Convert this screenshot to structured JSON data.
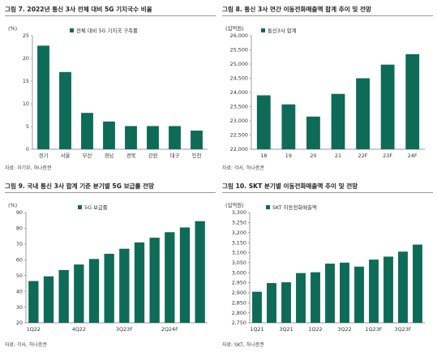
{
  "bar_color": "#0e6b57",
  "panels": [
    {
      "title": "그림 7. 2022년 통신 3사 전체 대비 5G 기지국수 비율",
      "source": "자료: 과기부, 하나증권"
    },
    {
      "title": "그림 8. 통신 3사 연간 이동전화매출액 합계 추이 및 전망",
      "source": "자료: 각사, 하나증권"
    },
    {
      "title": "그림 9. 국내 통신 3사 합계 기준 분기별 5G 보급률 전망",
      "source": "자료: 각사, 하나증권"
    },
    {
      "title": "그림 10. SKT 분기별 이동전화매출액 추이 및 전망",
      "source": "자료: SKT, 하나증권"
    }
  ],
  "chart_data": [
    {
      "type": "bar",
      "unit": "(%)",
      "series": [
        {
          "name": "전체 대비 5G 기지국 구축률",
          "values": [
            22.8,
            17.0,
            8.0,
            6.1,
            5.1,
            5.1,
            5.1,
            4.1
          ]
        }
      ],
      "categories": [
        "경기",
        "서울",
        "부산",
        "경남",
        "경북",
        "강원",
        "대구",
        "인천"
      ],
      "ylim": [
        0,
        25
      ],
      "yticks": [
        "0",
        "5",
        "10",
        "15",
        "20",
        "25"
      ],
      "legend": "top-center"
    },
    {
      "type": "bar",
      "unit": "(십억원)",
      "series": [
        {
          "name": "통신3사 합계",
          "values": [
            23900,
            23580,
            23150,
            23950,
            24500,
            24980,
            25350
          ]
        }
      ],
      "categories": [
        "18",
        "19",
        "20",
        "21",
        "22F",
        "23F",
        "24F"
      ],
      "ylim": [
        22000,
        26000
      ],
      "yticks": [
        "22,000",
        "22,500",
        "23,000",
        "23,500",
        "24,000",
        "24,500",
        "25,000",
        "25,500",
        "26,000"
      ],
      "legend": "top-left"
    },
    {
      "type": "bar",
      "unit": "(%)",
      "series": [
        {
          "name": "5G 보급률",
          "values": [
            46.5,
            49.5,
            53.5,
            57.0,
            60.5,
            63.8,
            67.0,
            71.0,
            74.0,
            77.5,
            80.5,
            84.5
          ]
        }
      ],
      "categories": [
        "1Q22",
        "2Q22",
        "3Q22",
        "4Q22",
        "1Q23F",
        "2Q23F",
        "3Q23F",
        "4Q23F",
        "1Q24F",
        "2Q24F",
        "3Q24F",
        "4Q24F"
      ],
      "category_labels_shown": [
        "1Q22",
        "4Q22",
        "3Q23F",
        "2Q24F"
      ],
      "ylim": [
        20,
        90
      ],
      "yticks": [
        "20",
        "30",
        "40",
        "50",
        "60",
        "70",
        "80",
        "90"
      ],
      "legend": "top-left"
    },
    {
      "type": "bar",
      "unit": "(십억원)",
      "series": [
        {
          "name": "SKT 이동전화매출액",
          "values": [
            2905,
            2948,
            2952,
            2998,
            3002,
            3045,
            3050,
            3030,
            3065,
            3080,
            3105,
            3140
          ]
        }
      ],
      "categories": [
        "1Q21",
        "2Q21",
        "3Q21",
        "4Q21",
        "1Q22",
        "2Q22",
        "3Q22",
        "4Q22",
        "1Q23F",
        "2Q23F",
        "3Q23F",
        "4Q23F"
      ],
      "category_labels_shown": [
        "1Q21",
        "3Q21",
        "1Q22",
        "3Q22",
        "1Q23F",
        "3Q23F"
      ],
      "ylim": [
        2750,
        3300
      ],
      "yticks": [
        "2,750",
        "2,800",
        "2,850",
        "2,900",
        "2,950",
        "3,000",
        "3,050",
        "3,100",
        "3,150",
        "3,200",
        "3,250",
        "3,300"
      ],
      "legend": "top-left"
    }
  ]
}
